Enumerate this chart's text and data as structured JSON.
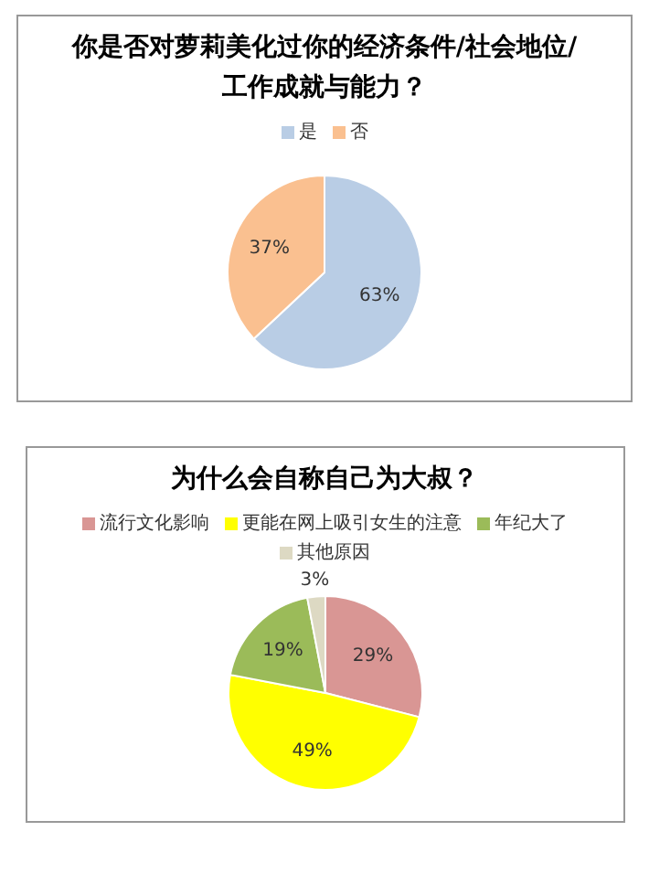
{
  "chart_data": [
    {
      "type": "pie",
      "title": "你是否对萝莉美化过你的经济条件/社会地位/工作成就与能力？",
      "categories": [
        "是",
        "否"
      ],
      "values": [
        63,
        37
      ],
      "colors": [
        "#b9cde5",
        "#fac090"
      ],
      "value_labels": [
        "63%",
        "37%"
      ],
      "legend": "top"
    },
    {
      "type": "pie",
      "title": "为什么会自称自己为大叔？",
      "categories": [
        "流行文化影响",
        "更能在网上吸引女生的注意",
        "年纪大了",
        "其他原因"
      ],
      "values": [
        29,
        49,
        19,
        3
      ],
      "colors": [
        "#d99694",
        "#ffff00",
        "#9bbb59",
        "#ddd9c3"
      ],
      "value_labels": [
        "29%",
        "49%",
        "19%",
        "3%"
      ],
      "legend": "top"
    }
  ]
}
